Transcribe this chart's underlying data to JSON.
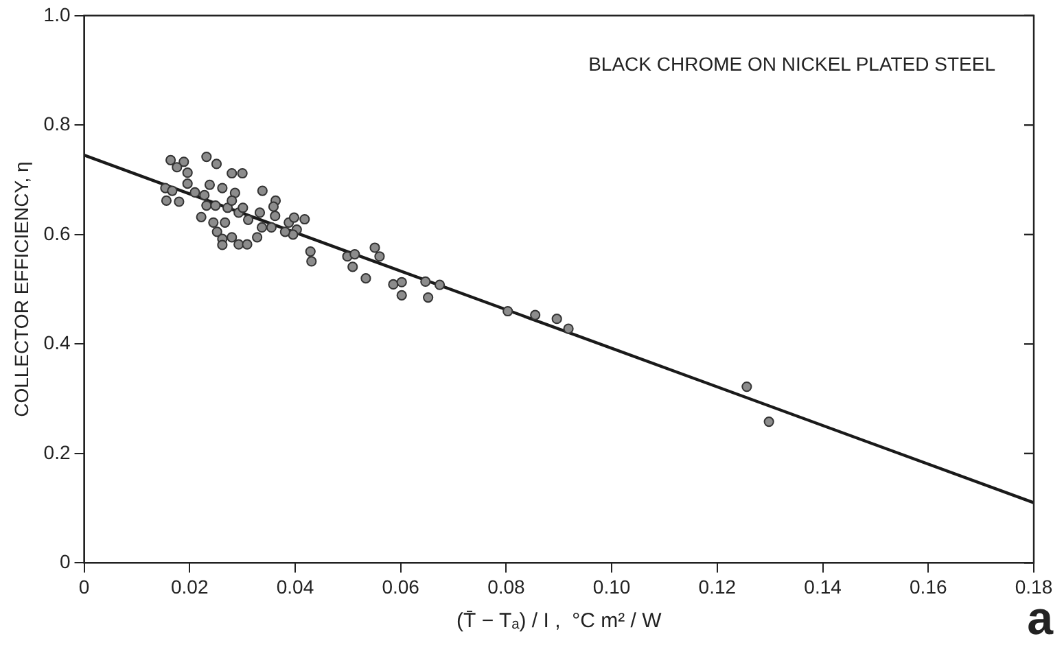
{
  "chart_data": {
    "type": "scatter",
    "xlabel": "(T̄ − Tₐ) / I ,  °C m² / W",
    "ylabel": "COLLECTOR EFFICIENCY, η",
    "annotations": [
      "BLACK CHROME ON NICKEL PLATED STEEL",
      "a"
    ],
    "xlim": [
      0,
      0.18
    ],
    "xticks": [
      0,
      0.02,
      0.04,
      0.06,
      0.08,
      {
        "value": 0.1,
        "label": "0.10"
      },
      0.12,
      0.14,
      0.16,
      0.18
    ],
    "ylim": [
      0,
      1
    ],
    "yticks": [
      0,
      0.2,
      0.4,
      0.6,
      0.8,
      {
        "value": 1,
        "label": "1.0"
      }
    ],
    "grid": false,
    "legend": false,
    "marker": "circle",
    "series": [
      {
        "color": "#8c8c8c",
        "x": [
          0.0164,
          0.0189,
          0.0176,
          0.0232,
          0.0251,
          0.0196,
          0.028,
          0.03,
          0.0154,
          0.0167,
          0.0156,
          0.018,
          0.0196,
          0.021,
          0.0238,
          0.0262,
          0.0228,
          0.0232,
          0.0222,
          0.0249,
          0.0272,
          0.0286,
          0.028,
          0.0293,
          0.0301,
          0.0311,
          0.0245,
          0.0252,
          0.0262,
          0.0267,
          0.028,
          0.0262,
          0.0293,
          0.0309,
          0.0328,
          0.0337,
          0.0355,
          0.0338,
          0.0363,
          0.0359,
          0.0333,
          0.0362,
          0.0388,
          0.0398,
          0.0403,
          0.0396,
          0.0381,
          0.0418,
          0.0429,
          0.0431,
          0.0499,
          0.0513,
          0.0509,
          0.0534,
          0.0551,
          0.056,
          0.0586,
          0.0602,
          0.0602,
          0.0647,
          0.0652,
          0.0674,
          0.0803,
          0.0855,
          0.0896,
          0.0918,
          0.1256,
          0.1298
        ],
        "values": [
          0.736,
          0.733,
          0.723,
          0.742,
          0.729,
          0.713,
          0.712,
          0.712,
          0.685,
          0.68,
          0.662,
          0.66,
          0.693,
          0.677,
          0.691,
          0.685,
          0.672,
          0.653,
          0.632,
          0.653,
          0.649,
          0.676,
          0.662,
          0.64,
          0.649,
          0.627,
          0.622,
          0.605,
          0.592,
          0.622,
          0.595,
          0.581,
          0.582,
          0.582,
          0.595,
          0.613,
          0.613,
          0.68,
          0.662,
          0.651,
          0.64,
          0.634,
          0.622,
          0.631,
          0.609,
          0.6,
          0.605,
          0.628,
          0.569,
          0.551,
          0.56,
          0.564,
          0.541,
          0.52,
          0.576,
          0.56,
          0.509,
          0.513,
          0.489,
          0.514,
          0.485,
          0.508,
          0.46,
          0.453,
          0.446,
          0.428,
          0.322,
          0.258
        ]
      },
      {
        "type": "line",
        "color": "#1a1a1a",
        "marker": "none",
        "line_style": "solid",
        "x": [
          0,
          0.18
        ],
        "values": [
          0.745,
          0.11
        ]
      }
    ]
  }
}
